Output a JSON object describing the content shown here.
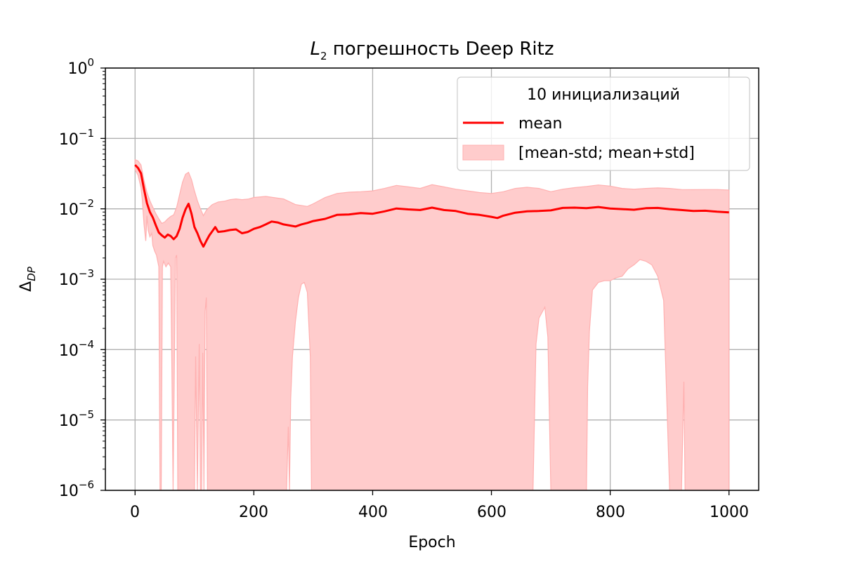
{
  "chart_data": {
    "type": "line",
    "title": {
      "main": "L",
      "sub": "2",
      "rest": " погрешность Deep Ritz"
    },
    "xlabel": "Epoch",
    "ylabel": {
      "main": "Δ",
      "sub": "DP"
    },
    "xlim": [
      -50,
      1050
    ],
    "ylim": [
      1e-06,
      1
    ],
    "yscale": "log",
    "grid": true,
    "legend_position": "top-right",
    "x_ticks": [
      "0",
      "200",
      "400",
      "600",
      "800",
      "1000"
    ],
    "y_ticks": [
      {
        "base": "10",
        "exp": "−6"
      },
      {
        "base": "10",
        "exp": "−5"
      },
      {
        "base": "10",
        "exp": "−4"
      },
      {
        "base": "10",
        "exp": "−3"
      },
      {
        "base": "10",
        "exp": "−2"
      },
      {
        "base": "10",
        "exp": "−1"
      },
      {
        "base": "10",
        "exp": "0"
      }
    ],
    "legend": {
      "title": "10 инициализаций",
      "mean_label": "mean",
      "band_label": "[mean-std; mean+std]"
    },
    "colors": {
      "mean": "#ff0000",
      "band": "#ffcccc",
      "band_edge": "#ffb0b0",
      "grid": "#b0b0b0"
    },
    "series": [
      {
        "name": "mean",
        "x": [
          0,
          5,
          10,
          15,
          20,
          25,
          30,
          35,
          40,
          45,
          50,
          55,
          60,
          65,
          70,
          75,
          80,
          85,
          90,
          95,
          100,
          105,
          110,
          115,
          120,
          125,
          130,
          135,
          140,
          150,
          160,
          170,
          180,
          190,
          200,
          210,
          220,
          230,
          240,
          250,
          260,
          270,
          280,
          290,
          300,
          320,
          340,
          360,
          380,
          400,
          420,
          440,
          460,
          480,
          500,
          520,
          540,
          560,
          580,
          600,
          610,
          620,
          640,
          660,
          680,
          700,
          720,
          740,
          760,
          780,
          800,
          820,
          840,
          860,
          880,
          900,
          920,
          940,
          960,
          980,
          1000
        ],
        "y": [
          0.042,
          0.038,
          0.032,
          0.019,
          0.012,
          0.009,
          0.0075,
          0.0058,
          0.0046,
          0.0042,
          0.0039,
          0.0043,
          0.0041,
          0.0037,
          0.0041,
          0.0052,
          0.0075,
          0.0098,
          0.0118,
          0.0085,
          0.0055,
          0.0045,
          0.0035,
          0.0029,
          0.0035,
          0.0042,
          0.0048,
          0.0055,
          0.0047,
          0.0048,
          0.005,
          0.0051,
          0.0045,
          0.0047,
          0.0052,
          0.0055,
          0.006,
          0.0066,
          0.0064,
          0.006,
          0.0058,
          0.0056,
          0.006,
          0.0063,
          0.0067,
          0.0072,
          0.0082,
          0.0083,
          0.0087,
          0.0085,
          0.0092,
          0.0101,
          0.0098,
          0.0096,
          0.0104,
          0.0096,
          0.0093,
          0.0085,
          0.0082,
          0.0077,
          0.0074,
          0.008,
          0.0088,
          0.0092,
          0.0093,
          0.0095,
          0.0103,
          0.0104,
          0.0102,
          0.0106,
          0.0101,
          0.0099,
          0.0097,
          0.0102,
          0.0103,
          0.0099,
          0.0096,
          0.0093,
          0.0094,
          0.0091,
          0.0089
        ]
      },
      {
        "name": "mean+std",
        "x": [
          0,
          5,
          10,
          15,
          20,
          25,
          30,
          35,
          40,
          45,
          50,
          55,
          60,
          65,
          70,
          75,
          80,
          85,
          90,
          95,
          100,
          105,
          110,
          115,
          120,
          125,
          130,
          140,
          150,
          160,
          170,
          180,
          190,
          200,
          220,
          250,
          270,
          290,
          300,
          320,
          340,
          360,
          380,
          400,
          420,
          440,
          460,
          480,
          500,
          520,
          540,
          560,
          580,
          600,
          620,
          640,
          660,
          680,
          700,
          720,
          740,
          760,
          780,
          800,
          820,
          840,
          860,
          880,
          900,
          920,
          940,
          960,
          980,
          1000
        ],
        "y": [
          0.05,
          0.048,
          0.042,
          0.025,
          0.017,
          0.013,
          0.0105,
          0.0085,
          0.0072,
          0.0062,
          0.0065,
          0.0072,
          0.0078,
          0.0082,
          0.0105,
          0.016,
          0.024,
          0.031,
          0.033,
          0.026,
          0.018,
          0.013,
          0.01,
          0.008,
          0.0095,
          0.0105,
          0.0115,
          0.0125,
          0.0128,
          0.0135,
          0.0138,
          0.0135,
          0.0137,
          0.0145,
          0.015,
          0.0138,
          0.0115,
          0.0108,
          0.0118,
          0.0145,
          0.0165,
          0.0172,
          0.0175,
          0.018,
          0.0195,
          0.0215,
          0.0205,
          0.0195,
          0.022,
          0.0205,
          0.019,
          0.018,
          0.017,
          0.0165,
          0.0175,
          0.0195,
          0.0202,
          0.0195,
          0.0175,
          0.019,
          0.02,
          0.0208,
          0.0218,
          0.021,
          0.0195,
          0.019,
          0.0195,
          0.0198,
          0.0195,
          0.0188,
          0.0187,
          0.0188,
          0.0188,
          0.0185
        ]
      },
      {
        "name": "mean-std",
        "x": [
          0,
          5,
          10,
          12,
          15,
          18,
          20,
          22,
          25,
          28,
          30,
          33,
          36,
          40,
          42,
          44,
          46,
          48,
          52,
          56,
          60,
          62,
          64,
          68,
          70,
          72,
          75,
          80,
          85,
          90,
          95,
          100,
          102,
          105,
          108,
          110,
          112,
          114,
          116,
          118,
          120,
          122,
          125,
          140,
          160,
          200,
          240,
          255,
          258,
          260,
          262,
          265,
          270,
          275,
          280,
          285,
          290,
          295,
          297,
          300,
          400,
          500,
          600,
          670,
          675,
          680,
          690,
          695,
          700,
          760,
          762,
          765,
          770,
          780,
          790,
          800,
          810,
          820,
          830,
          840,
          850,
          860,
          870,
          880,
          890,
          900,
          920,
          924,
          926,
          928,
          930,
          1000
        ],
        "y": [
          0.036,
          0.03,
          0.02,
          0.014,
          0.006,
          0.0035,
          0.008,
          0.005,
          0.004,
          0.0045,
          0.003,
          0.0025,
          0.0022,
          0.0015,
          1e-06,
          1e-06,
          0.0015,
          0.0018,
          0.0015,
          0.0017,
          0.0015,
          5e-05,
          1e-06,
          0.002,
          0.0022,
          1e-06,
          1e-06,
          1e-06,
          1e-06,
          1e-06,
          1e-06,
          1e-06,
          8e-05,
          1e-06,
          0.00012,
          1e-06,
          1e-06,
          9e-05,
          1e-06,
          0.00035,
          0.00055,
          1e-06,
          1e-06,
          1e-06,
          1e-06,
          1e-06,
          1e-06,
          1e-06,
          8e-06,
          1e-06,
          2e-05,
          8e-05,
          0.00025,
          0.00055,
          0.00085,
          0.0009,
          0.00065,
          8e-05,
          1e-06,
          1e-06,
          1e-06,
          1e-06,
          1e-06,
          1e-06,
          0.00012,
          0.00028,
          0.0004,
          0.00015,
          1e-06,
          1e-06,
          3e-05,
          0.00018,
          0.0007,
          0.0009,
          0.00095,
          0.00095,
          0.00105,
          0.0011,
          0.0014,
          0.0016,
          0.0019,
          0.0018,
          0.0016,
          0.0011,
          0.0005,
          1e-06,
          1e-06,
          3.5e-05,
          1e-06,
          1e-06,
          1e-06,
          1e-06
        ]
      }
    ]
  }
}
